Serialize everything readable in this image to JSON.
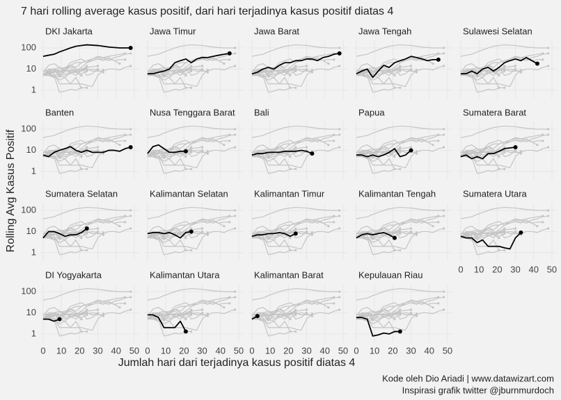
{
  "chart_data": {
    "type": "line",
    "title": "7 hari rolling average kasus positif, dari hari terjadinya kasus positif diatas 4",
    "xlabel": "Jumlah hari dari terjadinya kasus positif diatas 4",
    "ylabel": "Rolling Avg Kasus Positif",
    "caption": [
      "Kode oleh Dio Ariadi | www.datawizart.com",
      "Inspirasi grafik twitter @jburnmurdoch"
    ],
    "x": [
      0,
      3,
      6,
      9,
      12,
      15,
      18,
      21,
      24,
      27,
      30,
      33,
      36,
      39,
      42,
      45,
      48
    ],
    "series": [
      {
        "name": "DKI Jakarta",
        "values": [
          40,
          45,
          50,
          65,
          80,
          100,
          120,
          130,
          140,
          135,
          130,
          120,
          110,
          105,
          100,
          100,
          100
        ]
      },
      {
        "name": "Jawa Timur",
        "values": [
          6,
          6,
          7,
          8,
          10,
          20,
          25,
          30,
          20,
          30,
          35,
          35,
          40,
          45,
          50,
          55,
          null
        ]
      },
      {
        "name": "Jawa Barat",
        "values": [
          6,
          7,
          10,
          12,
          10,
          15,
          20,
          20,
          25,
          25,
          30,
          30,
          25,
          35,
          40,
          50,
          55
        ]
      },
      {
        "name": "Jawa Tengah",
        "values": [
          6,
          8,
          10,
          4,
          8,
          15,
          12,
          20,
          25,
          30,
          40,
          35,
          30,
          25,
          28,
          28,
          null
        ]
      },
      {
        "name": "Sulawesi Selatan",
        "values": [
          6,
          6,
          8,
          6,
          10,
          12,
          8,
          12,
          20,
          25,
          30,
          25,
          35,
          25,
          18,
          null,
          null
        ]
      },
      {
        "name": "Banten",
        "values": [
          6,
          5,
          8,
          10,
          12,
          15,
          10,
          8,
          10,
          8,
          8,
          8,
          10,
          10,
          9,
          12,
          14
        ]
      },
      {
        "name": "Nusa Tenggara Barat",
        "values": [
          7,
          15,
          18,
          12,
          8,
          8,
          9,
          9,
          null,
          null,
          null,
          null,
          null,
          null,
          null,
          null,
          null
        ]
      },
      {
        "name": "Bali",
        "values": [
          6,
          7,
          7,
          8,
          8,
          8,
          9,
          9,
          9,
          10,
          9,
          7,
          null,
          null,
          null,
          null,
          null
        ]
      },
      {
        "name": "Papua",
        "values": [
          6,
          6,
          5,
          6,
          5,
          6,
          8,
          12,
          5,
          6,
          10,
          null,
          null,
          null,
          null,
          null,
          null
        ]
      },
      {
        "name": "Sumatera Barat",
        "values": [
          5,
          6,
          4,
          5,
          4,
          7,
          7,
          9,
          12,
          13,
          14,
          null,
          null,
          null,
          null,
          null,
          null
        ]
      },
      {
        "name": "Sumatera Selatan",
        "values": [
          5,
          10,
          10,
          8,
          6,
          7,
          7,
          9,
          14,
          null,
          null,
          null,
          null,
          null,
          null,
          null,
          null
        ]
      },
      {
        "name": "Kalimantan Selatan",
        "values": [
          8,
          9,
          9,
          8,
          9,
          7,
          5,
          9,
          10,
          null,
          null,
          null,
          null,
          null,
          null,
          null,
          null
        ]
      },
      {
        "name": "Kalimantan Timur",
        "values": [
          6,
          7,
          7,
          8,
          8,
          9,
          8,
          6,
          8,
          null,
          null,
          null,
          null,
          null,
          null,
          null,
          null
        ]
      },
      {
        "name": "Kalimantan Tengah",
        "values": [
          5,
          7,
          8,
          7,
          8,
          9,
          7,
          5,
          null,
          null,
          null,
          null,
          null,
          null,
          null,
          null,
          null
        ]
      },
      {
        "name": "Sumatera Utara",
        "values": [
          6,
          5,
          5,
          3,
          4,
          2,
          2,
          2,
          1.7,
          1.5,
          5,
          9,
          null,
          null,
          null,
          null,
          null
        ]
      },
      {
        "name": "DI Yogyakarta",
        "values": [
          5,
          5,
          4,
          5,
          null,
          null,
          null,
          null,
          null,
          null,
          null,
          null,
          null,
          null,
          null,
          null,
          null
        ]
      },
      {
        "name": "Kalimantan Utara",
        "values": [
          8,
          8,
          6,
          2,
          2,
          2,
          4,
          1.3,
          null,
          null,
          null,
          null,
          null,
          null,
          null,
          null,
          null
        ]
      },
      {
        "name": "Kalimantan Barat",
        "values": [
          5,
          7,
          null,
          null,
          null,
          null,
          null,
          null,
          null,
          null,
          null,
          null,
          null,
          null,
          null,
          null,
          null
        ]
      },
      {
        "name": "Kepulauan Riau",
        "values": [
          6,
          6,
          5,
          0.8,
          0.9,
          1.1,
          1,
          1.3,
          1.3,
          null,
          null,
          null,
          null,
          null,
          null,
          null,
          null
        ]
      }
    ],
    "xlim": [
      -1.5,
      52.7
    ],
    "xticks": [
      0,
      10,
      20,
      30,
      40,
      50
    ],
    "ylim": [
      0.4,
      230
    ],
    "yticks": [
      1,
      10,
      100
    ],
    "log_y": true,
    "grid": true,
    "highlight_color": "#000000",
    "other_color": "#c4c4c4"
  }
}
